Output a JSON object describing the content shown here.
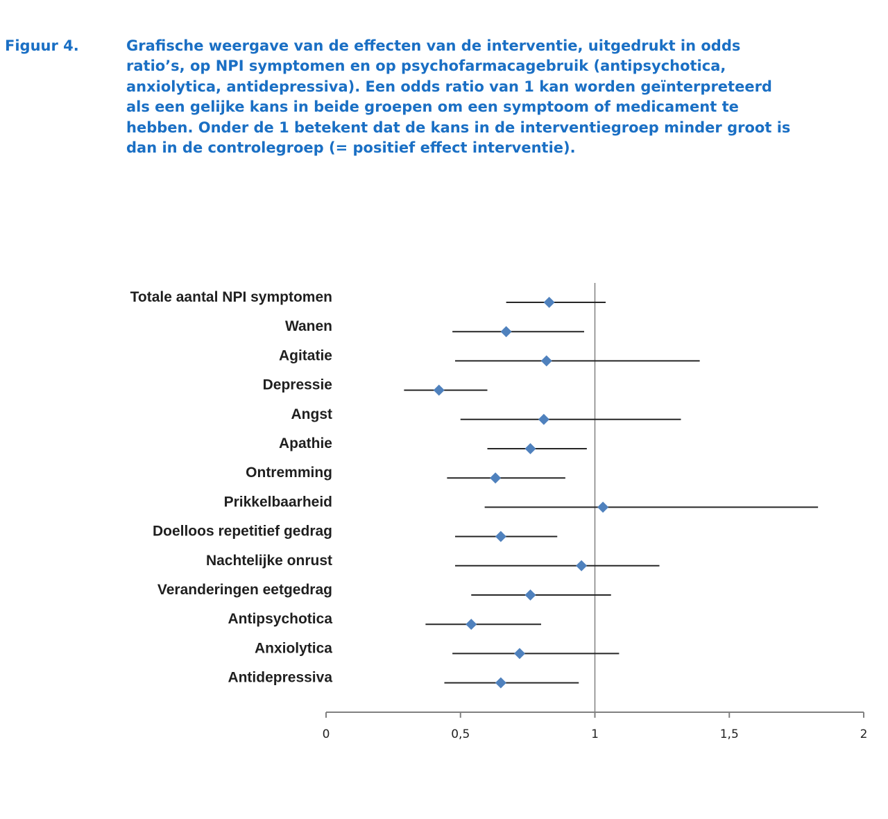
{
  "caption": {
    "label": "Figuur 4.",
    "text": "Grafische weergave van de effecten van de interventie, uitgedrukt in odds ratio’s, op NPI symptomen en op psychofarmacagebruik (antipsychotica, anxiolytica, antidepressiva). Een odds ratio van 1 kan worden geïnterpreteerd als een gelijke kans in beide groepen om een symptoom of medicament te hebben. Onder de 1 betekent dat de kans in de interventiegroep minder groot is dan in de controlegroep (= positief effect interventie)."
  },
  "colors": {
    "caption": "#1a6fc4",
    "marker": "#4f81bd",
    "whisker": "#262626",
    "axis": "#808080",
    "reference_line": "#808080"
  },
  "chart_data": {
    "type": "forest",
    "xlim": [
      0,
      2
    ],
    "xticks": [
      {
        "value": 0,
        "label": "0"
      },
      {
        "value": 0.5,
        "label": "0,5"
      },
      {
        "value": 1,
        "label": "1"
      },
      {
        "value": 1.5,
        "label": "1,5"
      },
      {
        "value": 2,
        "label": "2"
      }
    ],
    "reference_value": 1,
    "grid": false,
    "marker": "diamond",
    "rows": [
      {
        "label": "Totale aantal NPI symptomen",
        "estimate": 0.83,
        "lower": 0.67,
        "upper": 1.04
      },
      {
        "label": "Wanen",
        "estimate": 0.67,
        "lower": 0.47,
        "upper": 0.96
      },
      {
        "label": "Agitatie",
        "estimate": 0.82,
        "lower": 0.48,
        "upper": 1.39
      },
      {
        "label": "Depressie",
        "estimate": 0.42,
        "lower": 0.29,
        "upper": 0.6
      },
      {
        "label": "Angst",
        "estimate": 0.81,
        "lower": 0.5,
        "upper": 1.32
      },
      {
        "label": "Apathie",
        "estimate": 0.76,
        "lower": 0.6,
        "upper": 0.97
      },
      {
        "label": "Ontremming",
        "estimate": 0.63,
        "lower": 0.45,
        "upper": 0.89
      },
      {
        "label": "Prikkelbaarheid",
        "estimate": 1.03,
        "lower": 0.59,
        "upper": 1.83
      },
      {
        "label": "Doelloos repetitief gedrag",
        "estimate": 0.65,
        "lower": 0.48,
        "upper": 0.86
      },
      {
        "label": "Nachtelijke onrust",
        "estimate": 0.95,
        "lower": 0.48,
        "upper": 1.24
      },
      {
        "label": "Veranderingen eetgedrag",
        "estimate": 0.76,
        "lower": 0.54,
        "upper": 1.06
      },
      {
        "label": "Antipsychotica",
        "estimate": 0.54,
        "lower": 0.37,
        "upper": 0.8
      },
      {
        "label": "Anxiolytica",
        "estimate": 0.72,
        "lower": 0.47,
        "upper": 1.09
      },
      {
        "label": "Antidepressiva",
        "estimate": 0.65,
        "lower": 0.44,
        "upper": 0.94
      }
    ]
  }
}
